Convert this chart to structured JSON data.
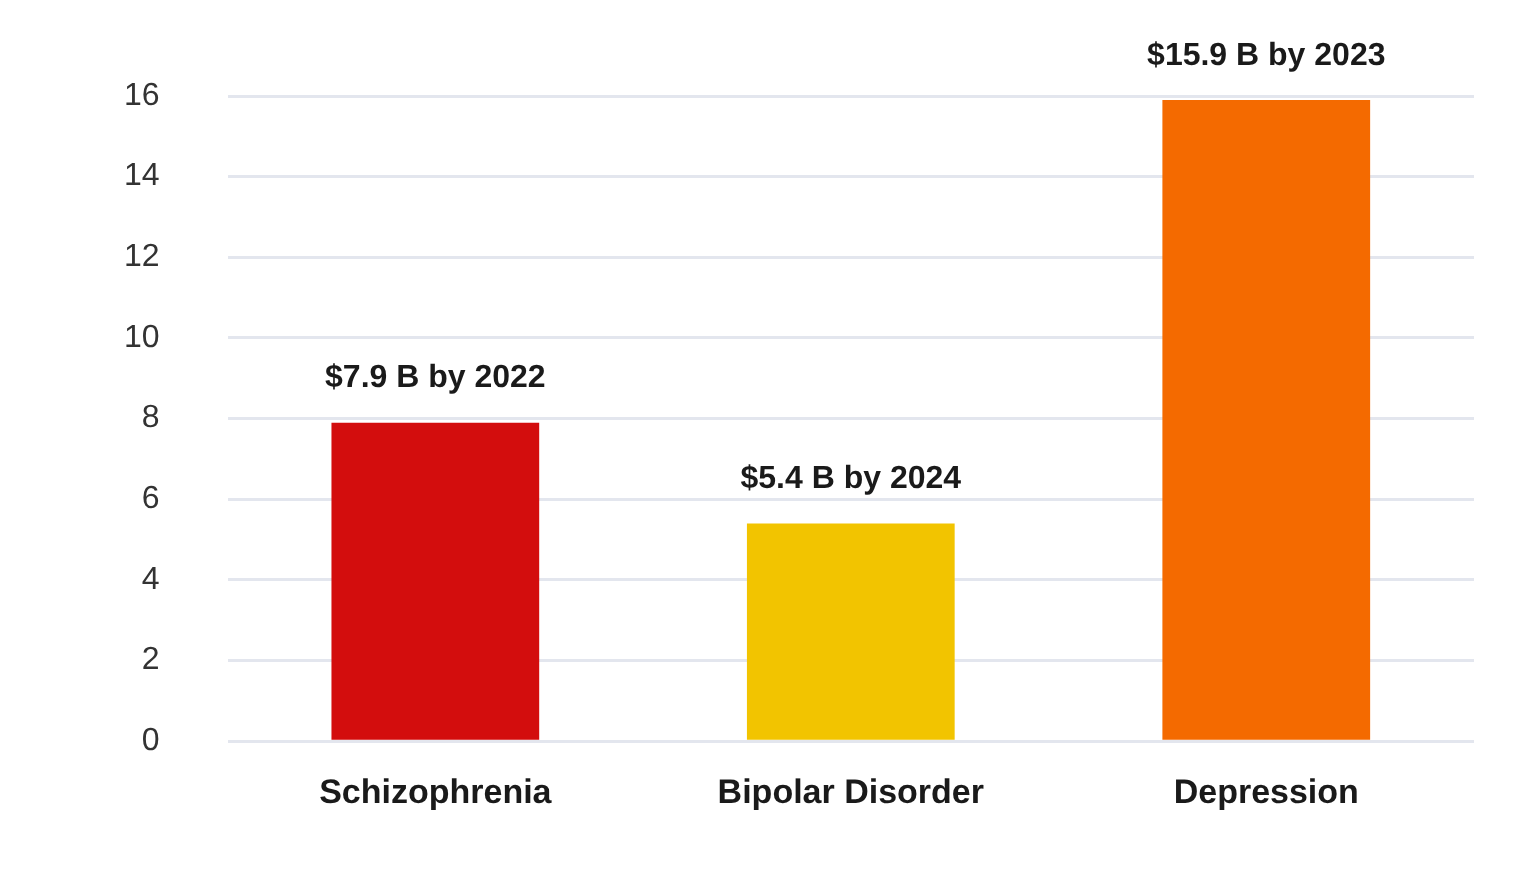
{
  "chart_data": {
    "type": "bar",
    "categories": [
      "Schizophrenia",
      "Bipolar Disorder",
      "Depression"
    ],
    "values": [
      7.9,
      5.4,
      15.9
    ],
    "colors": [
      "#d30d0d",
      "#f2c400",
      "#f46a00"
    ],
    "value_labels": [
      "$7.9 B by 2022",
      "$5.4 B by 2024",
      "$15.9 B by 2023"
    ],
    "ylim": [
      0,
      16
    ],
    "yticks": [
      0,
      2,
      4,
      6,
      8,
      10,
      12,
      14,
      16
    ],
    "grid": "y",
    "legend": false
  }
}
